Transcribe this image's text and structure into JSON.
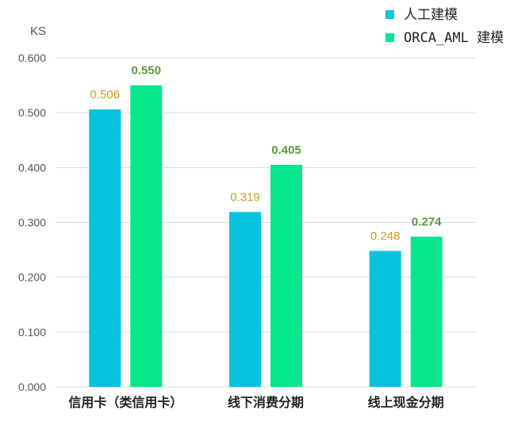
{
  "chart_data": {
    "type": "bar",
    "ylabel": "KS",
    "ylim": [
      0,
      0.6
    ],
    "yticks": [
      "0.000",
      "0.100",
      "0.200",
      "0.300",
      "0.400",
      "0.500",
      "0.600"
    ],
    "categories": [
      "信用卡（类信用卡）",
      "线下消费分期",
      "线上现金分期"
    ],
    "series": [
      {
        "name": "人工建模",
        "color": "#06c3e0",
        "label_color": "#c0a020",
        "values": [
          0.506,
          0.319,
          0.248
        ],
        "labels": [
          "0.506",
          "0.319",
          "0.248"
        ]
      },
      {
        "name": "ORCA_AML 建模",
        "color": "#08e68c",
        "label_color": "#5a9a3a",
        "values": [
          0.55,
          0.405,
          0.274
        ],
        "labels": [
          "0.550",
          "0.405",
          "0.274"
        ]
      }
    ],
    "grid": true,
    "legend": "top-right"
  }
}
